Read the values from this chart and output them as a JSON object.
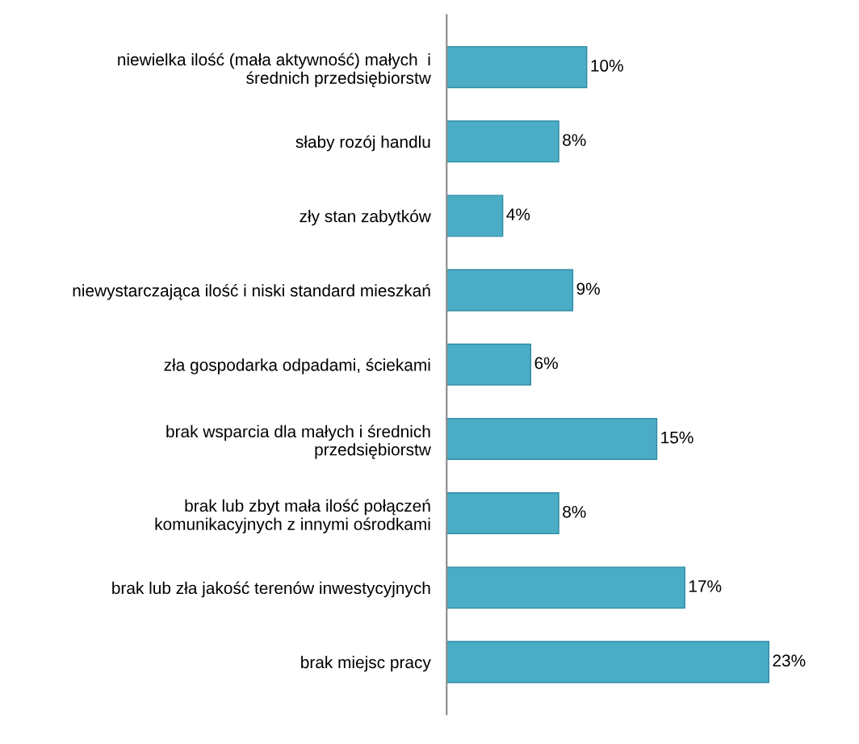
{
  "chart_data": {
    "type": "bar",
    "orientation": "horizontal",
    "categories": [
      "niewielka ilość (mała aktywność) małych  i\nśrednich przedsiębiorstw",
      "słaby rozój handlu",
      "zły stan zabytków",
      "niewystarczająca ilość i niski standard mieszkań",
      "zła gospodarka odpadami, ściekami",
      "brak wsparcia dla małych i średnich\nprzedsiębiorstw",
      "brak lub zbyt mała ilość połączeń\nkomunikacyjnych z innymi ośrodkami",
      "brak lub zła jakość terenów inwestycyjnych",
      "brak miejsc pracy"
    ],
    "values": [
      10,
      8,
      4,
      9,
      6,
      15,
      8,
      17,
      23
    ],
    "value_labels": [
      "10%",
      "8%",
      "4%",
      "9%",
      "6%",
      "15%",
      "8%",
      "17%",
      "23%"
    ],
    "color": "#4bacc6",
    "tick_labels": "y",
    "grid": false,
    "legend": false
  }
}
